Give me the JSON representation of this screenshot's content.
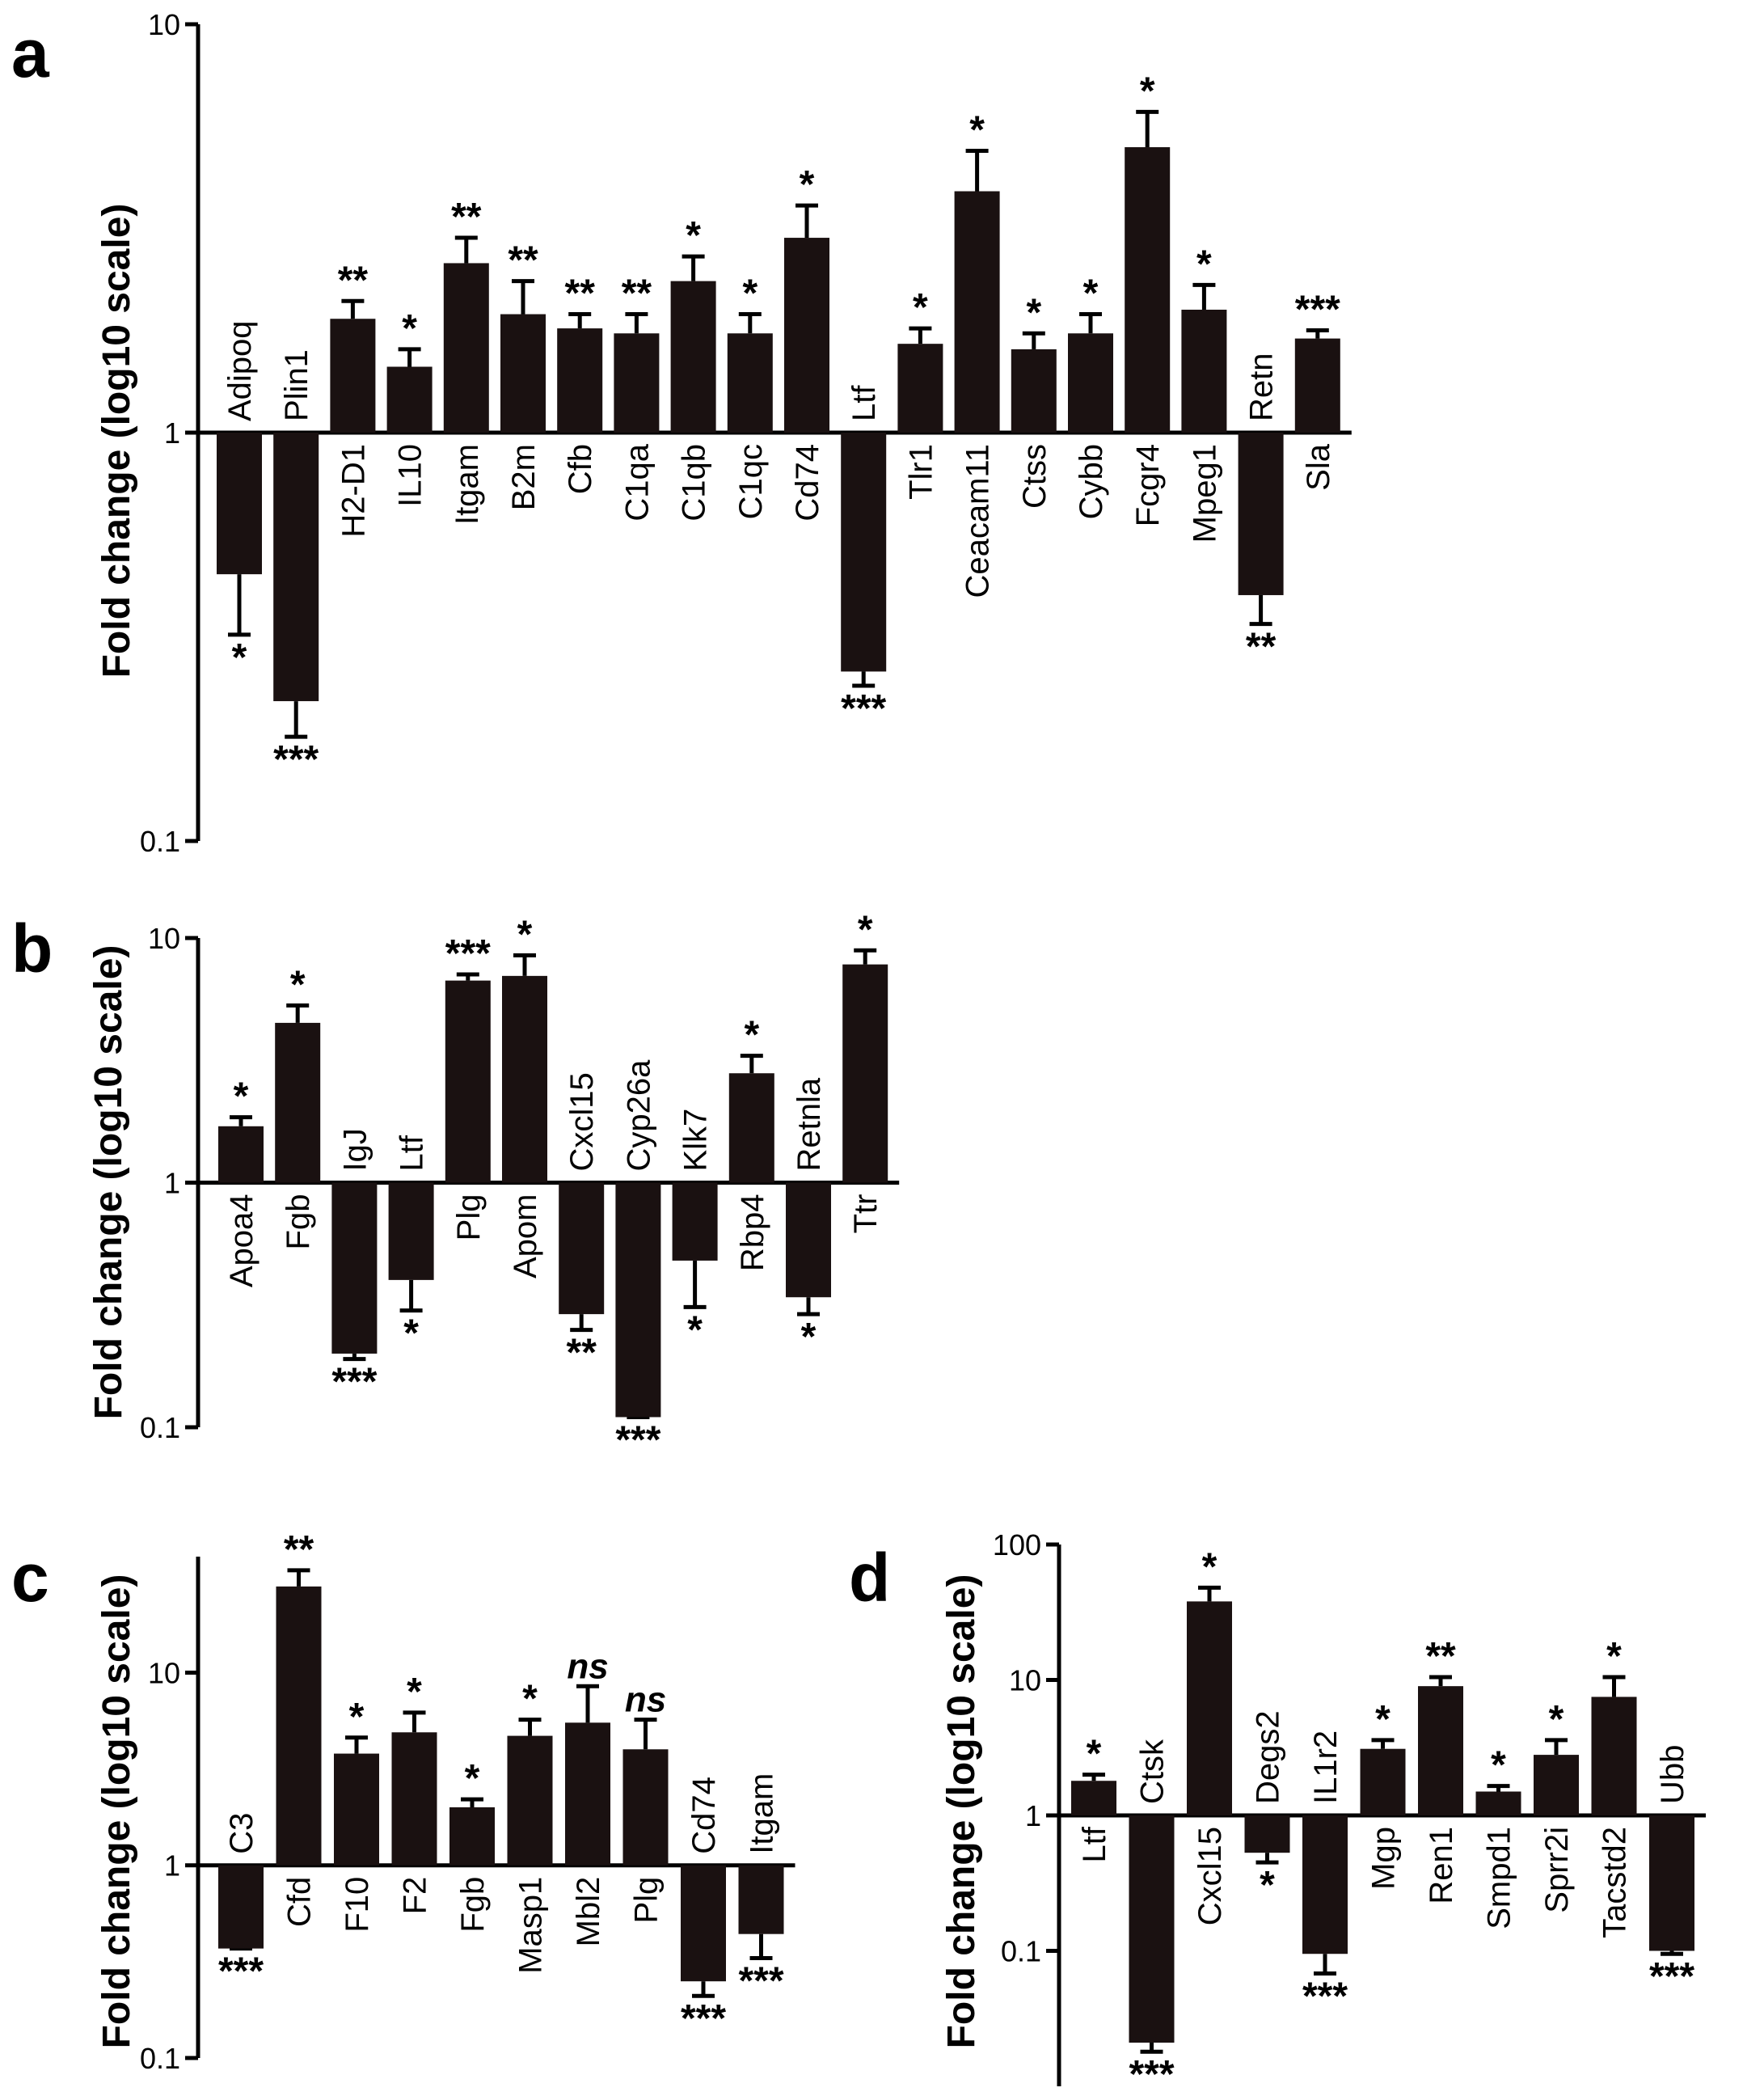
{
  "chart_data": [
    {
      "panel": "a",
      "type": "bar",
      "ylabel": "Fold change (log10 scale)",
      "yscale": "log10",
      "ylim": [
        0.1,
        10
      ],
      "yticks": [
        {
          "v": 10,
          "label": "10"
        },
        {
          "v": 1,
          "label": "1"
        },
        {
          "v": 0.1,
          "label": "0.1"
        }
      ],
      "bars": [
        {
          "label": "Adipoq",
          "value": 0.45,
          "err": 0.32,
          "sig": "*"
        },
        {
          "label": "Plin1",
          "value": 0.22,
          "err": 0.18,
          "sig": "***"
        },
        {
          "label": "H2-D1",
          "value": 1.9,
          "err": 2.1,
          "sig": "**"
        },
        {
          "label": "IL10",
          "value": 1.45,
          "err": 1.6,
          "sig": "*"
        },
        {
          "label": "Itgam",
          "value": 2.6,
          "err": 3.0,
          "sig": "**"
        },
        {
          "label": "B2m",
          "value": 1.95,
          "err": 2.35,
          "sig": "**"
        },
        {
          "label": "Cfb",
          "value": 1.8,
          "err": 1.95,
          "sig": "**"
        },
        {
          "label": "C1qa",
          "value": 1.75,
          "err": 1.95,
          "sig": "**"
        },
        {
          "label": "C1qb",
          "value": 2.35,
          "err": 2.7,
          "sig": "*"
        },
        {
          "label": "C1qc",
          "value": 1.75,
          "err": 1.95,
          "sig": "*"
        },
        {
          "label": "Cd74",
          "value": 3.0,
          "err": 3.6,
          "sig": "*"
        },
        {
          "label": "Ltf",
          "value": 0.26,
          "err": 0.24,
          "sig": "***"
        },
        {
          "label": "Tlr1",
          "value": 1.65,
          "err": 1.8,
          "sig": "*"
        },
        {
          "label": "Ceacam11",
          "value": 3.9,
          "err": 4.9,
          "sig": "*"
        },
        {
          "label": "Ctss",
          "value": 1.6,
          "err": 1.75,
          "sig": "*"
        },
        {
          "label": "Cybb",
          "value": 1.75,
          "err": 1.95,
          "sig": "*"
        },
        {
          "label": "Fcgr4",
          "value": 5.0,
          "err": 6.1,
          "sig": "*"
        },
        {
          "label": "Mpeg1",
          "value": 2.0,
          "err": 2.3,
          "sig": "*"
        },
        {
          "label": "Retn",
          "value": 0.4,
          "err": 0.34,
          "sig": "**"
        },
        {
          "label": "Sla",
          "value": 1.7,
          "err": 1.78,
          "sig": "***"
        }
      ]
    },
    {
      "panel": "b",
      "type": "bar",
      "ylabel": "Fold change (log10 scale)",
      "yscale": "log10",
      "ylim": [
        0.1,
        10
      ],
      "yticks": [
        {
          "v": 10,
          "label": "10"
        },
        {
          "v": 1,
          "label": "1"
        },
        {
          "v": 0.1,
          "label": "0.1"
        }
      ],
      "bars": [
        {
          "label": "Apoa4",
          "value": 1.7,
          "err": 1.85,
          "sig": "*"
        },
        {
          "label": "Fgb",
          "value": 4.5,
          "err": 5.3,
          "sig": "*"
        },
        {
          "label": "IgJ",
          "value": 0.2,
          "err": 0.19,
          "sig": "***"
        },
        {
          "label": "Ltf",
          "value": 0.4,
          "err": 0.3,
          "sig": "*"
        },
        {
          "label": "Plg",
          "value": 6.7,
          "err": 7.1,
          "sig": "***"
        },
        {
          "label": "Apom",
          "value": 7.0,
          "err": 8.5,
          "sig": "*"
        },
        {
          "label": "Cxcl15",
          "value": 0.29,
          "err": 0.25,
          "sig": "**"
        },
        {
          "label": "Cyp26a",
          "value": 0.11,
          "err": 0.11,
          "sig": "***"
        },
        {
          "label": "Klk7",
          "value": 0.48,
          "err": 0.31,
          "sig": "*"
        },
        {
          "label": "Rbp4",
          "value": 2.8,
          "err": 3.3,
          "sig": "*"
        },
        {
          "label": "Retnla",
          "value": 0.34,
          "err": 0.29,
          "sig": "*"
        },
        {
          "label": "Ttr",
          "value": 7.8,
          "err": 8.9,
          "sig": "*"
        }
      ]
    },
    {
      "panel": "c",
      "type": "bar",
      "ylabel": "Fold change (log10 scale)",
      "yscale": "log10",
      "ylim": [
        0.1,
        40
      ],
      "yticks": [
        {
          "v": 10,
          "label": "10"
        },
        {
          "v": 1,
          "label": "1"
        },
        {
          "v": 0.1,
          "label": "0.1"
        }
      ],
      "bars": [
        {
          "label": "C3",
          "value": 0.37,
          "err": 0.37,
          "sig": "***"
        },
        {
          "label": "Cfd",
          "value": 28,
          "err": 34,
          "sig": "**"
        },
        {
          "label": "F10",
          "value": 3.8,
          "err": 4.6,
          "sig": "*"
        },
        {
          "label": "F2",
          "value": 4.9,
          "err": 6.2,
          "sig": "*"
        },
        {
          "label": "Fgb",
          "value": 2.0,
          "err": 2.2,
          "sig": "*"
        },
        {
          "label": "Masp1",
          "value": 4.7,
          "err": 5.7,
          "sig": "*"
        },
        {
          "label": "Mbl2",
          "value": 5.5,
          "err": 8.5,
          "sig": "ns"
        },
        {
          "label": "Plg",
          "value": 4.0,
          "err": 5.7,
          "sig": "ns"
        },
        {
          "label": "Cd74",
          "value": 0.25,
          "err": 0.21,
          "sig": "***"
        },
        {
          "label": "Itgam",
          "value": 0.44,
          "err": 0.33,
          "sig": "***"
        }
      ]
    },
    {
      "panel": "d",
      "type": "bar",
      "ylabel": "Fold change (log10 scale)",
      "yscale": "log10",
      "ylim": [
        0.01,
        100
      ],
      "yticks": [
        {
          "v": 100,
          "label": "100"
        },
        {
          "v": 10,
          "label": "10"
        },
        {
          "v": 1,
          "label": "1"
        },
        {
          "v": 0.1,
          "label": "0.1"
        }
      ],
      "bars": [
        {
          "label": "Ltf",
          "value": 1.8,
          "err": 2.0,
          "sig": "*"
        },
        {
          "label": "Ctsk",
          "value": 0.021,
          "err": 0.018,
          "sig": "***"
        },
        {
          "label": "Cxcl15",
          "value": 38,
          "err": 48,
          "sig": "*"
        },
        {
          "label": "Degs2",
          "value": 0.53,
          "err": 0.45,
          "sig": "*"
        },
        {
          "label": "IL1r2",
          "value": 0.095,
          "err": 0.068,
          "sig": "***"
        },
        {
          "label": "Mgp",
          "value": 3.1,
          "err": 3.6,
          "sig": "*"
        },
        {
          "label": "Ren1",
          "value": 9.0,
          "err": 10.5,
          "sig": "**"
        },
        {
          "label": "Smpd1",
          "value": 1.5,
          "err": 1.65,
          "sig": "*"
        },
        {
          "label": "Sprr2i",
          "value": 2.8,
          "err": 3.6,
          "sig": "*"
        },
        {
          "label": "Tacstd2",
          "value": 7.5,
          "err": 10.5,
          "sig": "*"
        },
        {
          "label": "Ubb",
          "value": 0.1,
          "err": 0.095,
          "sig": "***"
        }
      ]
    }
  ]
}
